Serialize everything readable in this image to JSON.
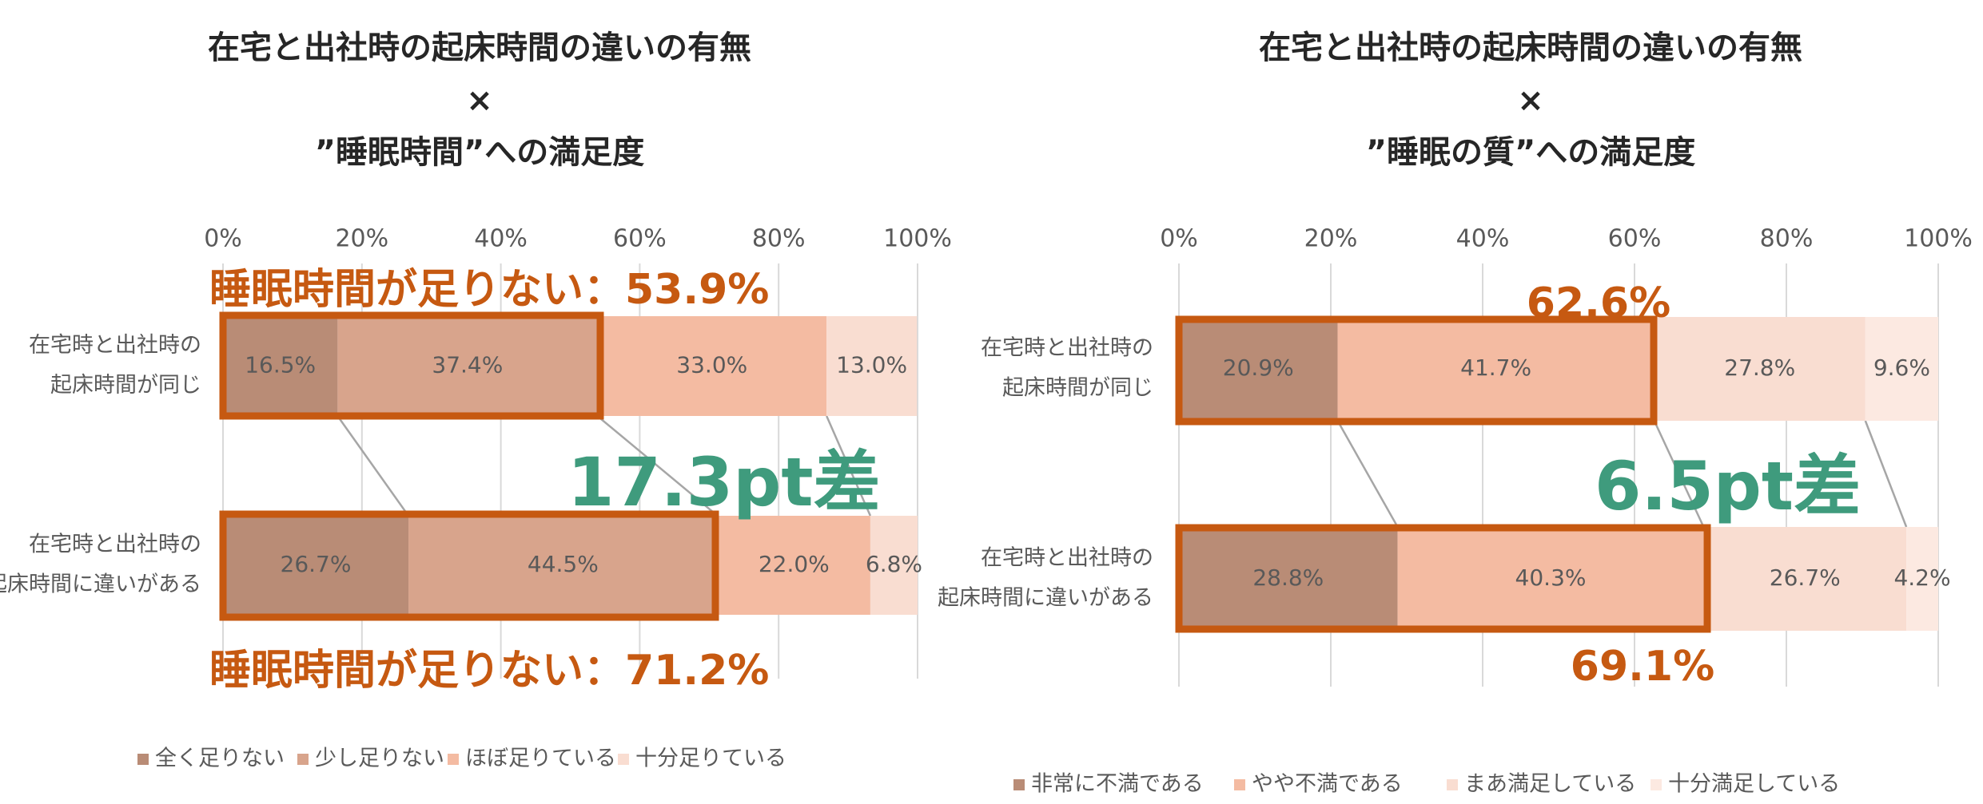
{
  "chart_data": [
    {
      "type": "bar",
      "stacked": true,
      "orientation": "horizontal",
      "title_lines": [
        "在宅と出社時の起床時間の違いの有無",
        "×",
        "”睡眠時間”への満足度"
      ],
      "xlim": [
        0,
        100
      ],
      "x_ticks": [
        "0%",
        "20%",
        "40%",
        "60%",
        "80%",
        "100%"
      ],
      "grid": true,
      "categories": [
        "在宅時と出社時の起床時間が同じ",
        "在宅時と出社時の起床時間に違いがある"
      ],
      "category_label_lines": [
        [
          "在宅時と出社時の",
          "起床時間が同じ"
        ],
        [
          "在宅時と出社時の",
          "起床時間に違いがある"
        ]
      ],
      "series": [
        {
          "name": "全く足りない",
          "values": [
            16.5,
            26.7
          ],
          "color": "#B98C76"
        },
        {
          "name": "少し足りない",
          "values": [
            37.4,
            44.5
          ],
          "color": "#D8A48C"
        },
        {
          "name": "ほぼ足りている",
          "values": [
            33.0,
            22.0
          ],
          "color": "#F4BBA2"
        },
        {
          "name": "十分足りている",
          "values": [
            13.0,
            6.8
          ],
          "color": "#F9DDD1"
        }
      ],
      "data_labels": [
        [
          "16.5%",
          "37.4%",
          "33.0%",
          "13.0%"
        ],
        [
          "26.7%",
          "44.5%",
          "22.0%",
          "6.8%"
        ]
      ],
      "legend_position": "bottom",
      "annotations": {
        "top_callout": "睡眠時間が足りない：53.9%",
        "bottom_callout": "睡眠時間が足りない：71.2%",
        "difference": "17.3pt差"
      }
    },
    {
      "type": "bar",
      "stacked": true,
      "orientation": "horizontal",
      "title_lines": [
        "在宅と出社時の起床時間の違いの有無",
        "×",
        "”睡眠の質”への満足度"
      ],
      "xlim": [
        0,
        100
      ],
      "x_ticks": [
        "0%",
        "20%",
        "40%",
        "60%",
        "80%",
        "100%"
      ],
      "grid": true,
      "categories": [
        "在宅時と出社時の起床時間が同じ",
        "在宅時と出社時の起床時間に違いがある"
      ],
      "category_label_lines": [
        [
          "在宅時と出社時の",
          "起床時間が同じ"
        ],
        [
          "在宅時と出社時の",
          "起床時間に違いがある"
        ]
      ],
      "series": [
        {
          "name": "非常に不満である",
          "values": [
            20.9,
            28.8
          ],
          "color": "#B98C76"
        },
        {
          "name": "やや不満である",
          "values": [
            41.7,
            40.3
          ],
          "color": "#F4BBA2"
        },
        {
          "name": "まあ満足している",
          "values": [
            27.8,
            26.7
          ],
          "color": "#F9DDD1"
        },
        {
          "name": "十分満足している",
          "values": [
            9.6,
            4.2
          ],
          "color": "#FCE9E1"
        }
      ],
      "data_labels": [
        [
          "20.9%",
          "41.7%",
          "27.8%",
          "9.6%"
        ],
        [
          "28.8%",
          "40.3%",
          "26.7%",
          "4.2%"
        ]
      ],
      "legend_position": "bottom",
      "annotations": {
        "top_callout": "62.6%",
        "bottom_callout": "69.1%",
        "difference": "6.5pt差"
      }
    }
  ],
  "colors": {
    "highlight_border": "#C65911",
    "callout_text": "#C65911",
    "difference_text": "#3F9B7D",
    "title_text": "#262626",
    "label_text": "#595959",
    "gridline": "#D9D9D9",
    "connector": "#A6A6A6"
  }
}
